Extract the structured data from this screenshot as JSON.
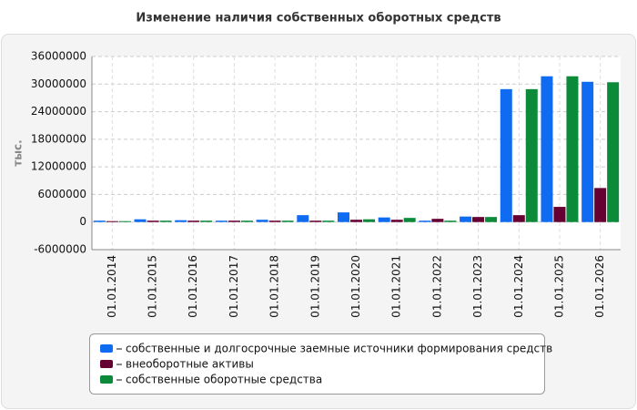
{
  "chart_data": {
    "type": "bar",
    "title": "Изменение наличия собственных оборотных средств",
    "y_label": "тыс.",
    "categories": [
      "01.01.2014",
      "01.01.2015",
      "01.01.2016",
      "01.01.2017",
      "01.01.2018",
      "01.01.2019",
      "01.01.2020",
      "01.01.2021",
      "01.01.2022",
      "01.01.2023",
      "01.01.2024",
      "01.01.2025",
      "01.01.2026"
    ],
    "series": [
      {
        "name": "собственные и долгосрочные заемные источники формирования средств",
        "color": "#0f6cf2",
        "values": [
          300000,
          600000,
          400000,
          300000,
          500000,
          1500000,
          2100000,
          1000000,
          300000,
          1200000,
          28900000,
          31700000,
          30500000
        ]
      },
      {
        "name": "внеоборотные активы",
        "color": "#660033",
        "values": [
          200000,
          300000,
          300000,
          300000,
          300000,
          300000,
          500000,
          500000,
          700000,
          1100000,
          1500000,
          3300000,
          7400000
        ]
      },
      {
        "name": "собственные оборотные средства",
        "color": "#0b8a3a",
        "values": [
          200000,
          300000,
          300000,
          300000,
          300000,
          300000,
          600000,
          900000,
          300000,
          1100000,
          28900000,
          31700000,
          30400000
        ]
      }
    ],
    "ylim": [
      -6000000,
      36000000
    ],
    "yticks": [
      -6000000,
      0,
      6000000,
      12000000,
      18000000,
      24000000,
      30000000,
      36000000
    ],
    "grid": true,
    "legend": "bottom"
  }
}
